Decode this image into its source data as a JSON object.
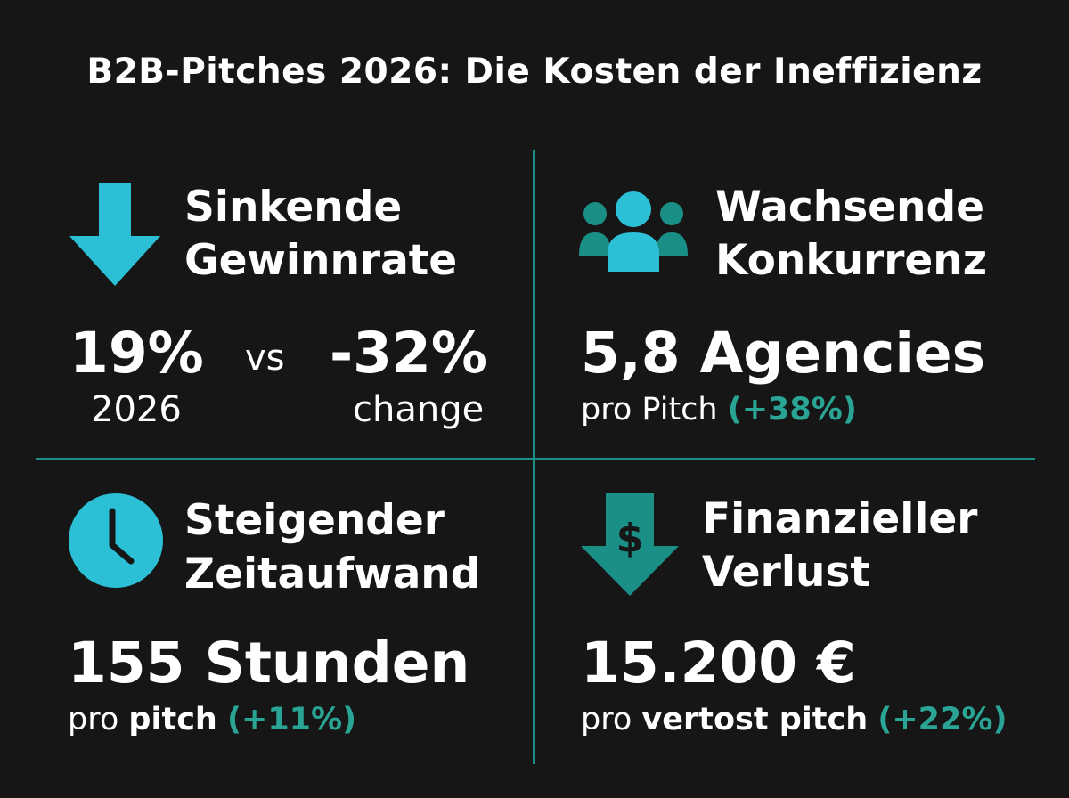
{
  "title": "B2B-Pitches 2026: Die Kosten der Ineffizienz",
  "colors": {
    "background": "#161616",
    "accent_cyan": "#2bc0d6",
    "accent_teal": "#1a8f86",
    "highlight_teal": "#2aa595"
  },
  "panels": {
    "win_rate": {
      "icon": "arrow-down-icon",
      "heading_line1": "Sinkende",
      "heading_line2": "Gewinnrate",
      "value": "19%",
      "value_label": "2026",
      "vs": "vs",
      "change": "-32%",
      "change_label": "change"
    },
    "competition": {
      "icon": "people-group-icon",
      "heading_line1": "Wachsende",
      "heading_line2": "Konkurrenz",
      "value": "5,8 Agencies",
      "sub_text": "pro Pitch",
      "sub_change": "(+38%)"
    },
    "time": {
      "icon": "clock-icon",
      "heading_line1": "Steigender",
      "heading_line2": "Zeitaufwand",
      "value": "155 Stunden",
      "sub_pre": "pro",
      "sub_bold": "pitch",
      "sub_change": "(+11%)"
    },
    "loss": {
      "icon": "dollar-down-arrow-icon",
      "heading_line1": "Finanzieller",
      "heading_line2": "Verlust",
      "value": "15.200 €",
      "sub_pre": "pro",
      "sub_bold": "vertost pitch",
      "sub_change": "(+22%)"
    }
  }
}
